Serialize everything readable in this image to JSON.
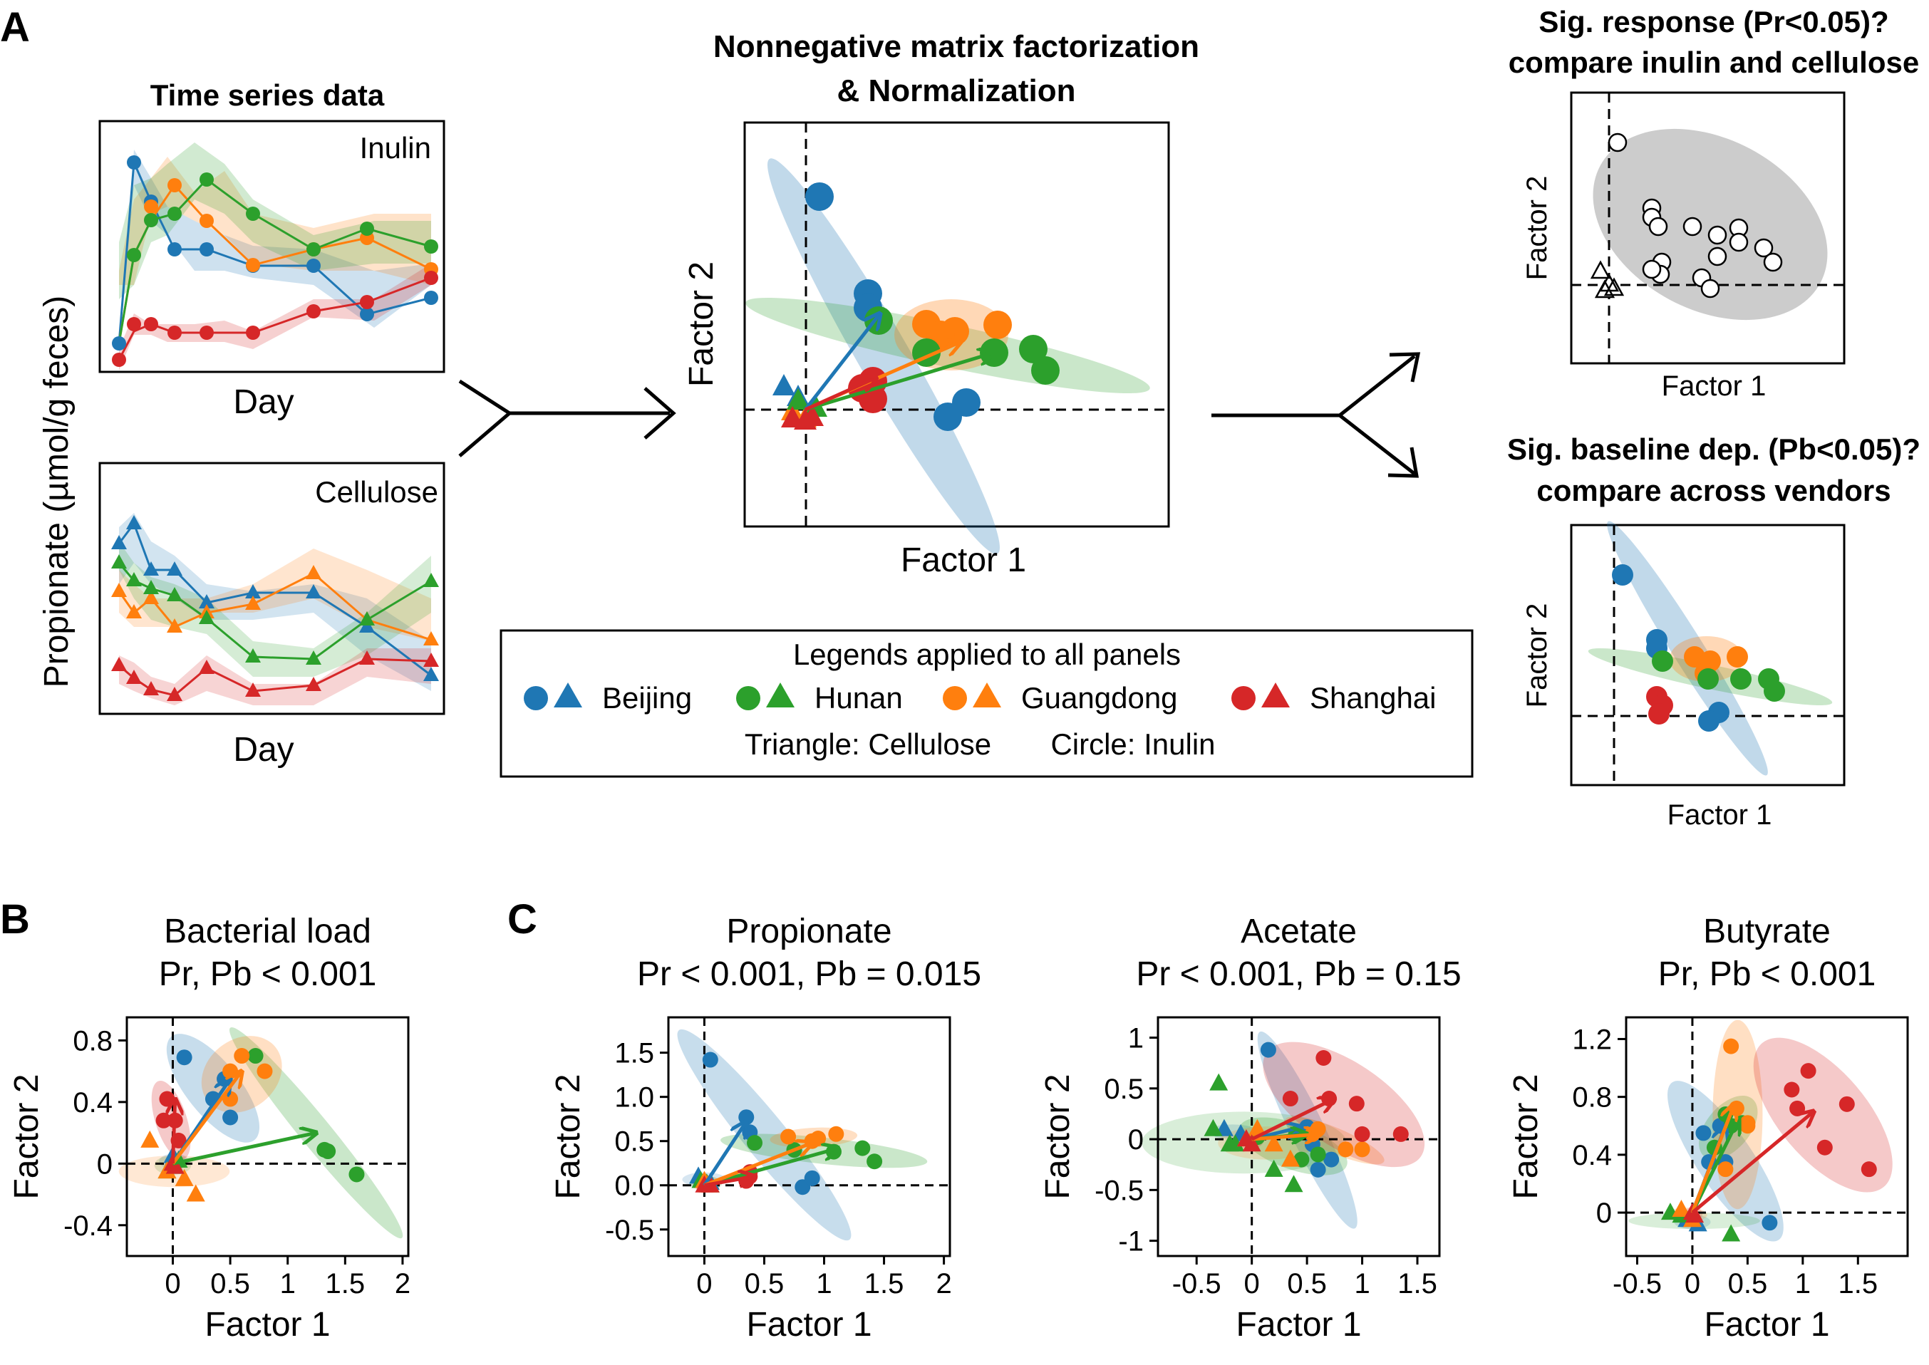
{
  "colors": {
    "beijing": "#1f77b4",
    "hunan": "#2ca02c",
    "guangdong": "#ff7f0e",
    "shanghai": "#d62728",
    "gray": "#bfbfbf"
  },
  "panel_letters": {
    "a": "A",
    "b": "B",
    "c": "C"
  },
  "panelA": {
    "ts_title": "Time series data",
    "ts_ylabel": "Propionate (µmol/g feces)",
    "ts_xlabel": "Day",
    "inulin_label": "Inulin",
    "cellulose_label": "Cellulose",
    "nmf_title_1": "Nonnegative matrix factorization",
    "nmf_title_2": "& Normalization",
    "factor1": "Factor 1",
    "factor2": "Factor 2",
    "sig_resp_1": "Sig. response (Pr<0.05)?",
    "sig_resp_2": "compare inulin and cellulose",
    "sig_base_1": "Sig. baseline dep. (Pb<0.05)?",
    "sig_base_2": "compare across vendors",
    "legend": {
      "title": "Legends applied to all panels",
      "items": [
        "Beijing",
        "Hunan",
        "Guangdong",
        "Shanghai"
      ],
      "note_triangle": "Triangle: Cellulose",
      "note_circle": "Circle: Inulin"
    }
  },
  "chart_data": [
    {
      "type": "scatter",
      "panel": "B",
      "title": "Bacterial load",
      "subtitle": "Pr, Pb < 0.001",
      "xlabel": "Factor 1",
      "ylabel": "Factor 2",
      "xlim": [
        -0.4,
        2.05
      ],
      "ylim": [
        -0.6,
        0.95
      ],
      "xticks": [
        0,
        0.5,
        1,
        1.5,
        2
      ],
      "yticks": [
        -0.4,
        0,
        0.4,
        0.8
      ],
      "xtick_labels": [
        "0",
        "0.5",
        "1",
        "1.5",
        "2"
      ],
      "ytick_labels": [
        "-0.4",
        "0",
        "0.4",
        "0.8"
      ],
      "series": [
        {
          "name": "Beijing",
          "color": "#1f77b4",
          "inulin": [
            [
              0.1,
              0.69
            ],
            [
              0.35,
              0.42
            ],
            [
              0.45,
              0.55
            ],
            [
              0.5,
              0.3
            ]
          ],
          "cellulose": [
            [
              0,
              0.05
            ],
            [
              0.02,
              -0.02
            ]
          ],
          "arrow": [
            0.5,
            0.55
          ]
        },
        {
          "name": "Hunan",
          "color": "#2ca02c",
          "inulin": [
            [
              0.72,
              0.7
            ],
            [
              1.35,
              0.08
            ],
            [
              1.6,
              -0.07
            ],
            [
              1.32,
              0.09
            ]
          ],
          "cellulose": [
            [
              0,
              0
            ],
            [
              -0.05,
              -0.05
            ],
            [
              0.05,
              0.02
            ]
          ],
          "arrow": [
            1.25,
            0.2
          ]
        },
        {
          "name": "Guangdong",
          "color": "#ff7f0e",
          "inulin": [
            [
              0.5,
              0.6
            ],
            [
              0.6,
              0.7
            ],
            [
              0.8,
              0.6
            ],
            [
              0.5,
              0.42
            ]
          ],
          "cellulose": [
            [
              -0.2,
              0.15
            ],
            [
              0.2,
              -0.2
            ],
            [
              -0.05,
              -0.05
            ],
            [
              0.1,
              -0.1
            ]
          ],
          "arrow": [
            0.6,
            0.6
          ]
        },
        {
          "name": "Shanghai",
          "color": "#d62728",
          "inulin": [
            [
              -0.05,
              0.42
            ],
            [
              0.02,
              0.28
            ],
            [
              -0.08,
              0.28
            ],
            [
              0.05,
              0.15
            ]
          ],
          "cellulose": [
            [
              0,
              0
            ],
            [
              0.02,
              -0.02
            ]
          ],
          "arrow": [
            0.02,
            0.42
          ]
        }
      ]
    },
    {
      "type": "scatter",
      "panel": "C",
      "title": "Propionate",
      "subtitle": "Pr < 0.001, Pb = 0.015",
      "xlabel": "Factor 1",
      "ylabel": "Factor 2",
      "xlim": [
        -0.3,
        2.05
      ],
      "ylim": [
        -0.8,
        1.9
      ],
      "xticks": [
        0,
        0.5,
        1,
        1.5,
        2
      ],
      "yticks": [
        -0.5,
        0,
        0.5,
        1,
        1.5
      ],
      "xtick_labels": [
        "0",
        "0.5",
        "1",
        "1.5",
        "2"
      ],
      "ytick_labels": [
        "-0.5",
        "0.0",
        "0.5",
        "1.0",
        "1.5"
      ],
      "series": [
        {
          "name": "Beijing",
          "color": "#1f77b4",
          "inulin": [
            [
              0.05,
              1.42
            ],
            [
              0.35,
              0.77
            ],
            [
              0.38,
              0.6
            ],
            [
              0.82,
              -0.02
            ],
            [
              0.9,
              0.08
            ]
          ],
          "cellulose": [
            [
              -0.05,
              0.1
            ],
            [
              0.05,
              0.03
            ]
          ],
          "arrow": [
            0.35,
            0.72
          ]
        },
        {
          "name": "Hunan",
          "color": "#2ca02c",
          "inulin": [
            [
              0.42,
              0.48
            ],
            [
              0.75,
              0.4
            ],
            [
              1.08,
              0.38
            ],
            [
              1.32,
              0.42
            ],
            [
              1.42,
              0.27
            ]
          ],
          "cellulose": [
            [
              0.02,
              0.02
            ],
            [
              0.05,
              0.0
            ],
            [
              -0.03,
              0.05
            ]
          ],
          "arrow": [
            1.12,
            0.42
          ]
        },
        {
          "name": "Guangdong",
          "color": "#ff7f0e",
          "inulin": [
            [
              0.7,
              0.55
            ],
            [
              0.95,
              0.53
            ],
            [
              1.1,
              0.58
            ],
            [
              0.9,
              0.5
            ]
          ],
          "cellulose": [
            [
              0.03,
              0.0
            ],
            [
              0.0,
              0.05
            ]
          ],
          "arrow": [
            0.9,
            0.48
          ]
        },
        {
          "name": "Shanghai",
          "color": "#d62728",
          "inulin": [
            [
              0.38,
              0.1
            ],
            [
              0.35,
              0.05
            ],
            [
              0.38,
              0.15
            ]
          ],
          "cellulose": [
            [
              0.0,
              0.0
            ],
            [
              0.05,
              0.0
            ]
          ],
          "arrow": [
            0.42,
            0.1
          ]
        }
      ]
    },
    {
      "type": "scatter",
      "panel": "C",
      "title": "Acetate",
      "subtitle": "Pr < 0.001, Pb = 0.15",
      "xlabel": "Factor 1",
      "ylabel": "Factor 2",
      "xlim": [
        -0.85,
        1.7
      ],
      "ylim": [
        -1.15,
        1.2
      ],
      "xticks": [
        -0.5,
        0,
        0.5,
        1,
        1.5
      ],
      "yticks": [
        -1,
        -0.5,
        0,
        0.5,
        1
      ],
      "xtick_labels": [
        "-0.5",
        "0",
        "0.5",
        "1",
        "1.5"
      ],
      "ytick_labels": [
        "-1",
        "-0.5",
        "0",
        "0.5",
        "1"
      ],
      "series": [
        {
          "name": "Beijing",
          "color": "#1f77b4",
          "inulin": [
            [
              0.15,
              0.88
            ],
            [
              0.5,
              0.12
            ],
            [
              0.55,
              -0.05
            ],
            [
              0.72,
              -0.2
            ],
            [
              0.6,
              -0.3
            ]
          ],
          "cellulose": [
            [
              -0.25,
              0.1
            ],
            [
              -0.1,
              0.05
            ]
          ],
          "arrow": [
            0.45,
            0.12
          ]
        },
        {
          "name": "Hunan",
          "color": "#2ca02c",
          "inulin": [
            [
              0.05,
              0.02
            ],
            [
              0.4,
              0.05
            ],
            [
              0.6,
              -0.15
            ],
            [
              0.45,
              -0.2
            ]
          ],
          "cellulose": [
            [
              -0.3,
              0.55
            ],
            [
              -0.35,
              0.1
            ],
            [
              -0.2,
              -0.05
            ],
            [
              0.2,
              -0.3
            ],
            [
              0.38,
              -0.45
            ],
            [
              -0.15,
              -0.05
            ]
          ],
          "arrow": [
            0.5,
            0.05
          ]
        },
        {
          "name": "Guangdong",
          "color": "#ff7f0e",
          "inulin": [
            [
              0.6,
              0.1
            ],
            [
              0.85,
              -0.1
            ],
            [
              1.0,
              -0.1
            ],
            [
              0.55,
              0.05
            ]
          ],
          "cellulose": [
            [
              -0.05,
              0.0
            ],
            [
              0.05,
              0.1
            ],
            [
              0.35,
              -0.2
            ],
            [
              0.2,
              -0.05
            ]
          ],
          "arrow": [
            0.62,
            0.05
          ]
        },
        {
          "name": "Shanghai",
          "color": "#d62728",
          "inulin": [
            [
              0.35,
              0.4
            ],
            [
              0.65,
              0.8
            ],
            [
              0.7,
              0.4
            ],
            [
              0.95,
              0.35
            ],
            [
              1.35,
              0.05
            ],
            [
              1.0,
              0.05
            ]
          ],
          "cellulose": [
            [
              -0.05,
              0.0
            ],
            [
              0.0,
              -0.05
            ]
          ],
          "arrow": [
            0.75,
            0.4
          ]
        }
      ]
    },
    {
      "type": "scatter",
      "panel": "C",
      "title": "Butyrate",
      "subtitle": "Pr, Pb < 0.001",
      "xlabel": "Factor 1",
      "ylabel": "Factor 2",
      "xlim": [
        -0.6,
        1.95
      ],
      "ylim": [
        -0.3,
        1.35
      ],
      "xticks": [
        -0.5,
        0,
        0.5,
        1,
        1.5
      ],
      "yticks": [
        0,
        0.4,
        0.8,
        1.2
      ],
      "xtick_labels": [
        "-0.5",
        "0",
        "0.5",
        "1",
        "1.5"
      ],
      "ytick_labels": [
        "0",
        "0.4",
        "0.8",
        "1.2"
      ],
      "series": [
        {
          "name": "Beijing",
          "color": "#1f77b4",
          "inulin": [
            [
              0.1,
              0.55
            ],
            [
              0.15,
              0.35
            ],
            [
              0.25,
              0.6
            ],
            [
              0.3,
              0.35
            ],
            [
              0.7,
              -0.07
            ]
          ],
          "cellulose": [
            [
              -0.05,
              -0.05
            ],
            [
              0.05,
              -0.08
            ]
          ],
          "arrow": [
            0.3,
            0.6
          ]
        },
        {
          "name": "Hunan",
          "color": "#2ca02c",
          "inulin": [
            [
              0.3,
              0.68
            ],
            [
              0.35,
              0.6
            ],
            [
              0.45,
              0.62
            ],
            [
              0.2,
              0.45
            ]
          ],
          "cellulose": [
            [
              -0.2,
              0.0
            ],
            [
              -0.1,
              -0.02
            ],
            [
              0.35,
              -0.15
            ]
          ],
          "arrow": [
            0.42,
            0.65
          ]
        },
        {
          "name": "Guangdong",
          "color": "#ff7f0e",
          "inulin": [
            [
              0.35,
              1.15
            ],
            [
              0.4,
              0.72
            ],
            [
              0.5,
              0.6
            ],
            [
              0.3,
              0.3
            ],
            [
              0.5,
              0.62
            ]
          ],
          "cellulose": [
            [
              -0.1,
              0.02
            ],
            [
              0.0,
              -0.05
            ]
          ],
          "arrow": [
            0.38,
            0.75
          ]
        },
        {
          "name": "Shanghai",
          "color": "#d62728",
          "inulin": [
            [
              0.9,
              0.85
            ],
            [
              1.05,
              0.98
            ],
            [
              1.4,
              0.75
            ],
            [
              1.6,
              0.3
            ],
            [
              1.2,
              0.45
            ],
            [
              0.95,
              0.72
            ]
          ],
          "cellulose": [
            [
              0.0,
              0.0
            ],
            [
              0.02,
              -0.02
            ]
          ],
          "arrow": [
            1.1,
            0.7
          ]
        }
      ]
    }
  ]
}
